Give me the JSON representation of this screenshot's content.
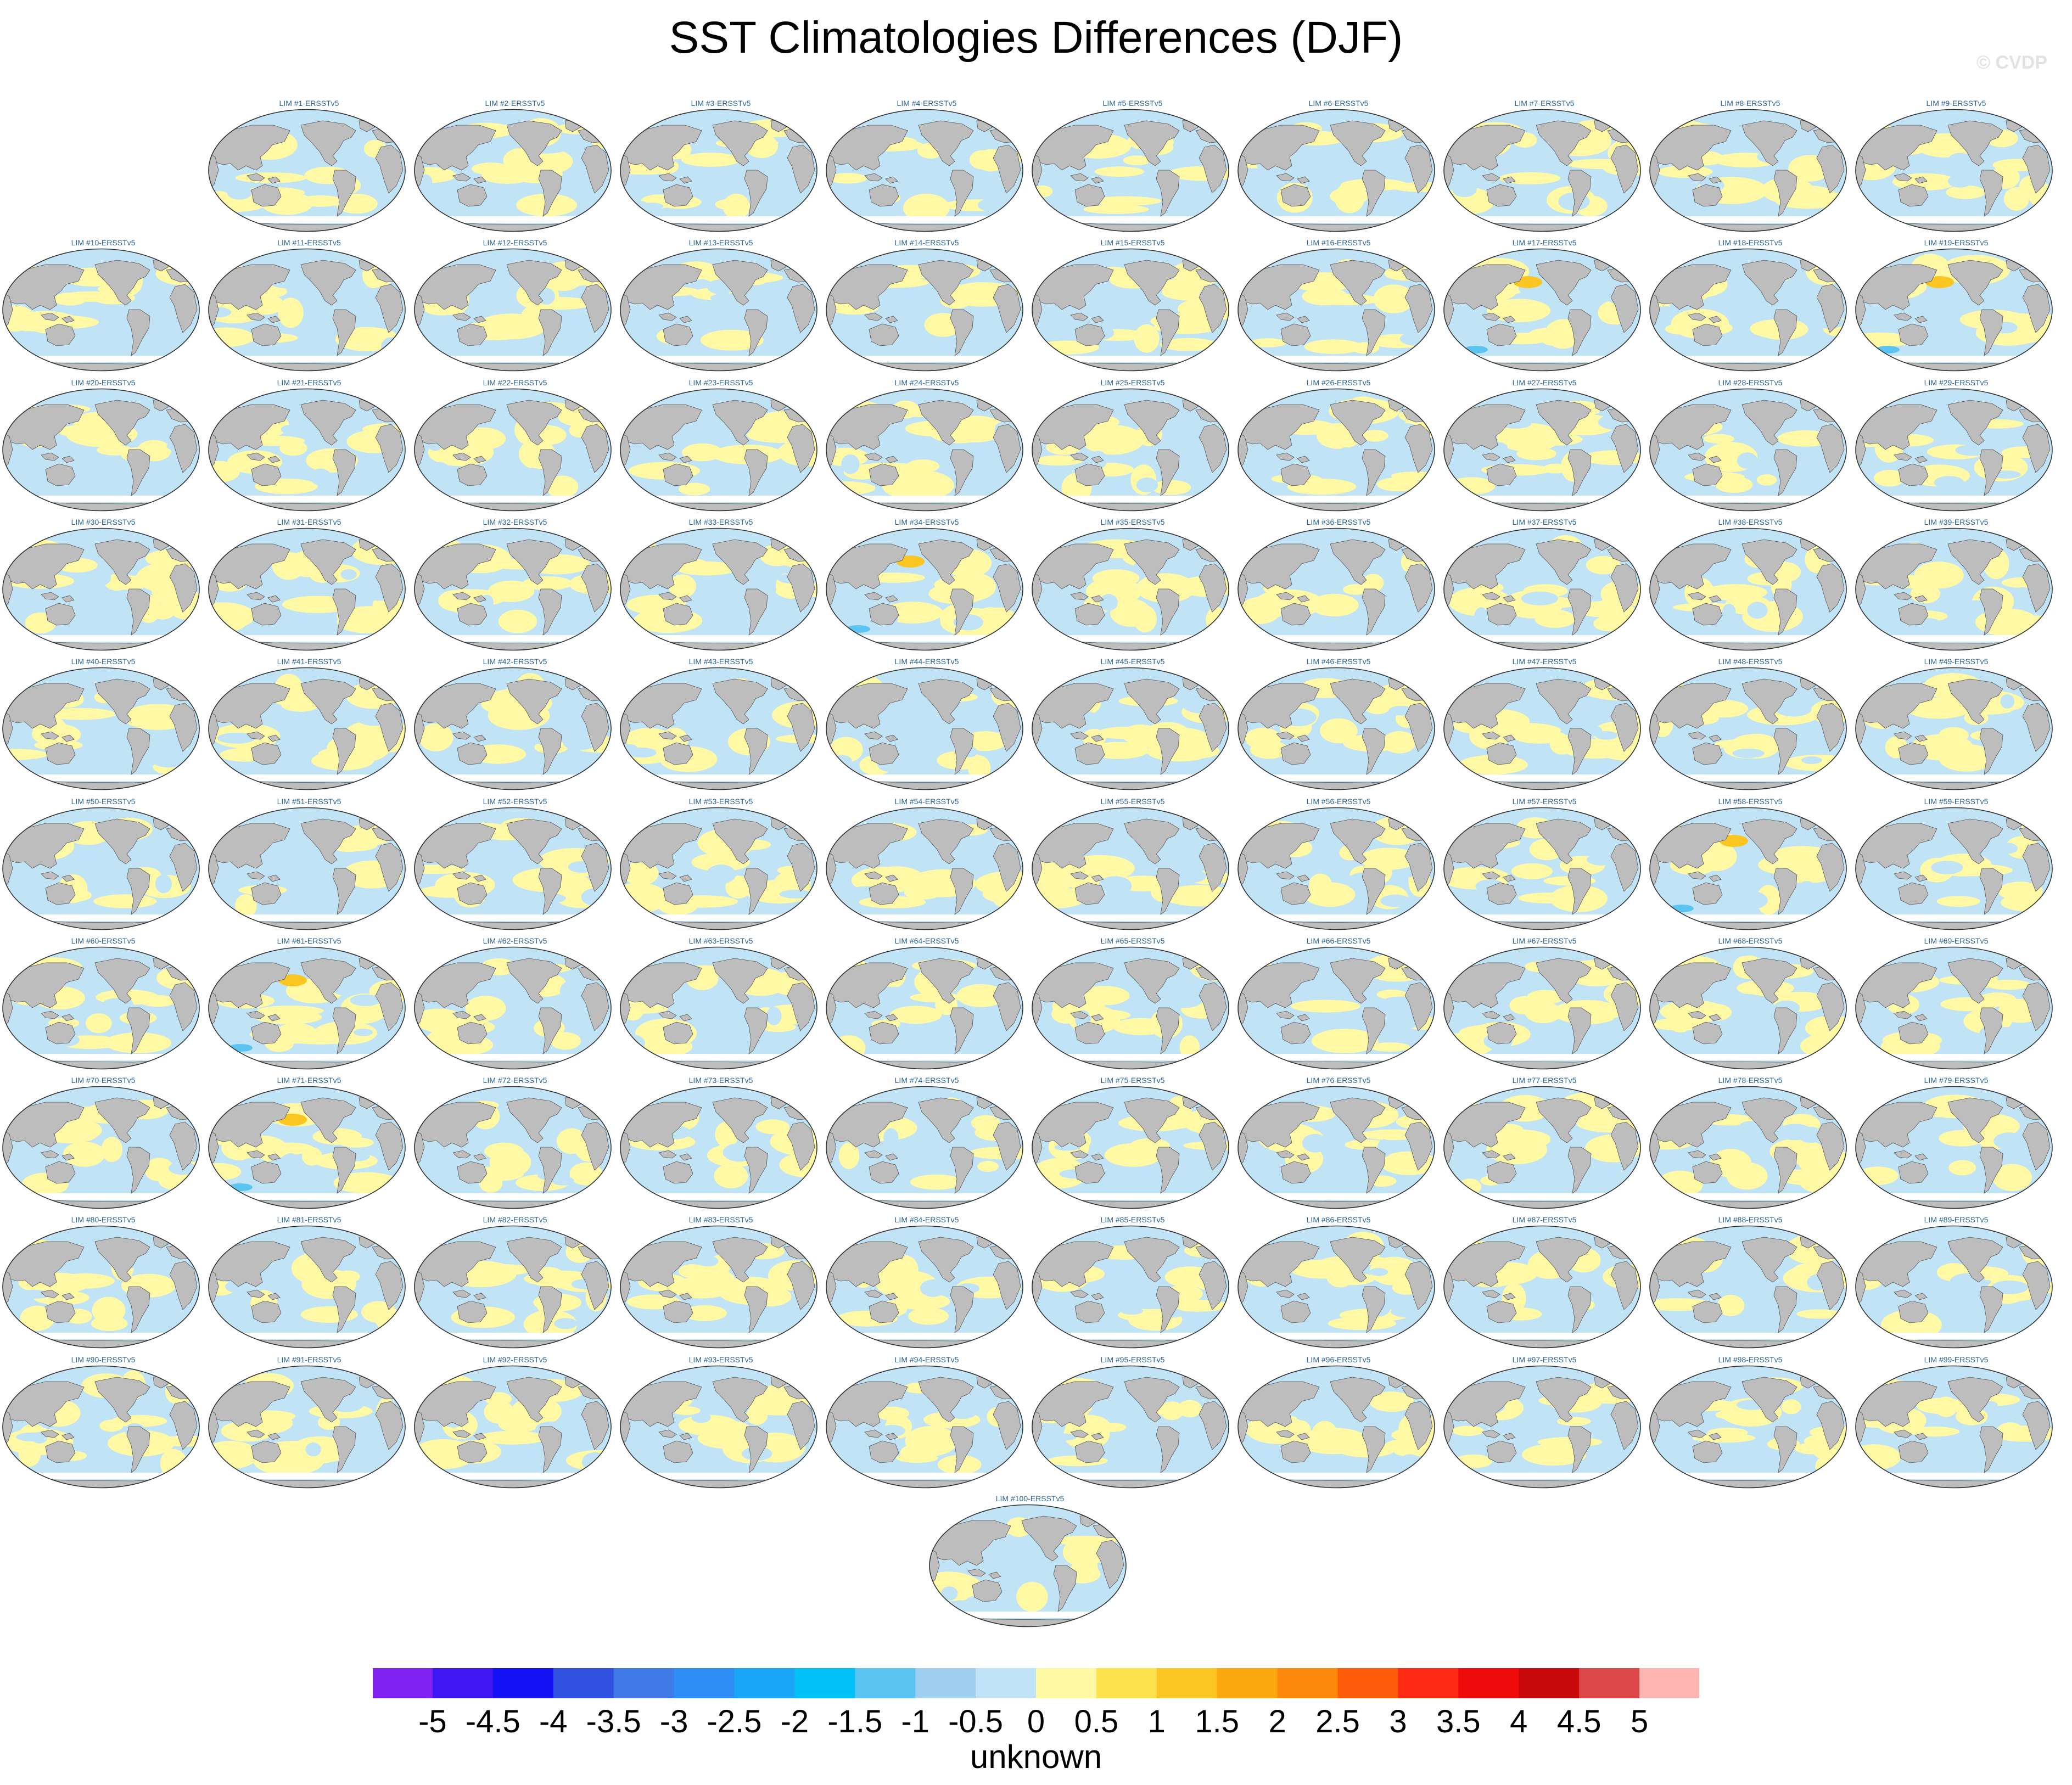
{
  "title": "SST Climatologies Differences (DJF)",
  "watermark": "© CVDP",
  "colorbar": {
    "label": "unknown",
    "ticks": [
      "-5",
      "-4.5",
      "-4",
      "-3.5",
      "-3",
      "-2.5",
      "-2",
      "-1.5",
      "-1",
      "-0.5",
      "0",
      "0.5",
      "1",
      "1.5",
      "2",
      "2.5",
      "3",
      "3.5",
      "4",
      "4.5",
      "5"
    ],
    "colors": [
      "#7f22f0",
      "#3d18f2",
      "#1212f5",
      "#3050e0",
      "#3f7ae6",
      "#2d8cf5",
      "#1aa6f7",
      "#00c0f8",
      "#5bc4f0",
      "#9ecfee",
      "#c1e3f6",
      "#fff9a6",
      "#ffe24d",
      "#fcc622",
      "#fba80f",
      "#fd880a",
      "#fe5d0a",
      "#fe2a12",
      "#ef0a0a",
      "#c80909",
      "#dc4848",
      "#ffb6b3"
    ]
  },
  "chart_data": {
    "type": "map-grid",
    "title": "SST Climatologies Differences (DJF)",
    "panels": [
      "LIM #1-ERSSTv5",
      "LIM #2-ERSSTv5",
      "LIM #3-ERSSTv5",
      "LIM #4-ERSSTv5",
      "LIM #5-ERSSTv5",
      "LIM #6-ERSSTv5",
      "LIM #7-ERSSTv5",
      "LIM #8-ERSSTv5",
      "LIM #9-ERSSTv5",
      "LIM #10-ERSSTv5",
      "LIM #11-ERSSTv5",
      "LIM #12-ERSSTv5",
      "LIM #13-ERSSTv5",
      "LIM #14-ERSSTv5",
      "LIM #15-ERSSTv5",
      "LIM #16-ERSSTv5",
      "LIM #17-ERSSTv5",
      "LIM #18-ERSSTv5",
      "LIM #19-ERSSTv5",
      "LIM #20-ERSSTv5",
      "LIM #21-ERSSTv5",
      "LIM #22-ERSSTv5",
      "LIM #23-ERSSTv5",
      "LIM #24-ERSSTv5",
      "LIM #25-ERSSTv5",
      "LIM #26-ERSSTv5",
      "LIM #27-ERSSTv5",
      "LIM #28-ERSSTv5",
      "LIM #29-ERSSTv5",
      "LIM #30-ERSSTv5",
      "LIM #31-ERSSTv5",
      "LIM #32-ERSSTv5",
      "LIM #33-ERSSTv5",
      "LIM #34-ERSSTv5",
      "LIM #35-ERSSTv5",
      "LIM #36-ERSSTv5",
      "LIM #37-ERSSTv5",
      "LIM #38-ERSSTv5",
      "LIM #39-ERSSTv5",
      "LIM #40-ERSSTv5",
      "LIM #41-ERSSTv5",
      "LIM #42-ERSSTv5",
      "LIM #43-ERSSTv5",
      "LIM #44-ERSSTv5",
      "LIM #45-ERSSTv5",
      "LIM #46-ERSSTv5",
      "LIM #47-ERSSTv5",
      "LIM #48-ERSSTv5",
      "LIM #49-ERSSTv5",
      "LIM #50-ERSSTv5",
      "LIM #51-ERSSTv5",
      "LIM #52-ERSSTv5",
      "LIM #53-ERSSTv5",
      "LIM #54-ERSSTv5",
      "LIM #55-ERSSTv5",
      "LIM #56-ERSSTv5",
      "LIM #57-ERSSTv5",
      "LIM #58-ERSSTv5",
      "LIM #59-ERSSTv5",
      "LIM #60-ERSSTv5",
      "LIM #61-ERSSTv5",
      "LIM #62-ERSSTv5",
      "LIM #63-ERSSTv5",
      "LIM #64-ERSSTv5",
      "LIM #65-ERSSTv5",
      "LIM #66-ERSSTv5",
      "LIM #67-ERSSTv5",
      "LIM #68-ERSSTv5",
      "LIM #69-ERSSTv5",
      "LIM #70-ERSSTv5",
      "LIM #71-ERSSTv5",
      "LIM #72-ERSSTv5",
      "LIM #73-ERSSTv5",
      "LIM #74-ERSSTv5",
      "LIM #75-ERSSTv5",
      "LIM #76-ERSSTv5",
      "LIM #77-ERSSTv5",
      "LIM #78-ERSSTv5",
      "LIM #79-ERSSTv5",
      "LIM #80-ERSSTv5",
      "LIM #81-ERSSTv5",
      "LIM #82-ERSSTv5",
      "LIM #83-ERSSTv5",
      "LIM #84-ERSSTv5",
      "LIM #85-ERSSTv5",
      "LIM #86-ERSSTv5",
      "LIM #87-ERSSTv5",
      "LIM #88-ERSSTv5",
      "LIM #89-ERSSTv5",
      "LIM #90-ERSSTv5",
      "LIM #91-ERSSTv5",
      "LIM #92-ERSSTv5",
      "LIM #93-ERSSTv5",
      "LIM #94-ERSSTv5",
      "LIM #95-ERSSTv5",
      "LIM #96-ERSSTv5",
      "LIM #97-ERSSTv5",
      "LIM #98-ERSSTv5",
      "LIM #99-ERSSTv5",
      "LIM #100-ERSSTv5"
    ],
    "strong_anomaly_panels": [
      "LIM #17-ERSSTv5",
      "LIM #19-ERSSTv5",
      "LIM #34-ERSSTv5",
      "LIM #58-ERSSTv5",
      "LIM #61-ERSSTv5",
      "LIM #71-ERSSTv5"
    ],
    "colorbar_levels": [
      -5,
      -4.5,
      -4,
      -3.5,
      -3,
      -2.5,
      -2,
      -1.5,
      -1,
      -0.5,
      0,
      0.5,
      1,
      1.5,
      2,
      2.5,
      3,
      3.5,
      4,
      4.5,
      5
    ],
    "colorbar_label": "unknown",
    "land_color": "#bdbdbd",
    "ocean_neutral_color": "#c1e3f6",
    "warm_color": "#fff9a6"
  }
}
